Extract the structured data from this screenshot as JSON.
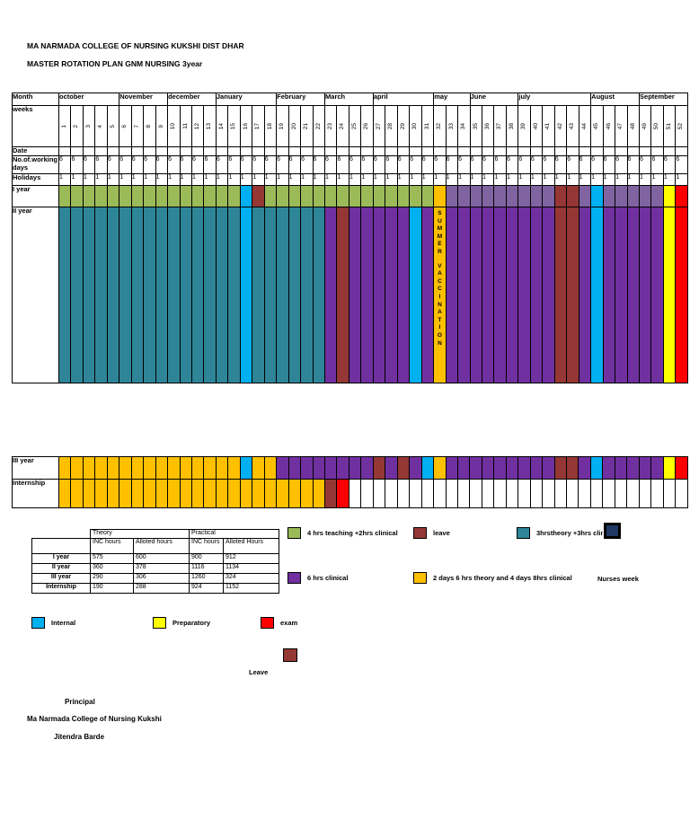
{
  "header": {
    "line1": "MA NARMADA COLLEGE OF NURSING KUKSHI DIST DHAR",
    "line2": "MASTER ROTATION PLAN GNM NURSING 3year"
  },
  "colors": {
    "green": "#9bbb59",
    "teal": "#2e8597",
    "purple": "#7030a0",
    "lavender": "#8064a2",
    "darkred": "#953734",
    "blue": "#00b0f0",
    "orange": "#ffc000",
    "yellow": "#ffff00",
    "red": "#ff0000",
    "white": "#ffffff",
    "navy": "#1f3864"
  },
  "rotation_table": {
    "row_labels": {
      "month": "Month",
      "weeks": "weeks",
      "date": "Date",
      "working_days": "No.of.working days",
      "holidays": "Holidays",
      "year1": "I year",
      "year2": "II year",
      "year3": "III year",
      "internship": "Internship"
    },
    "months": [
      {
        "label": "october",
        "weeks": 5
      },
      {
        "label": "November",
        "weeks": 4
      },
      {
        "label": "december",
        "weeks": 4
      },
      {
        "label": "January",
        "weeks": 5
      },
      {
        "label": "February",
        "weeks": 4
      },
      {
        "label": "March",
        "weeks": 4
      },
      {
        "label": "april",
        "weeks": 5
      },
      {
        "label": "may",
        "weeks": 3
      },
      {
        "label": "June",
        "weeks": 4
      },
      {
        "label": "july",
        "weeks": 6
      },
      {
        "label": "August",
        "weeks": 4
      },
      {
        "label": "September",
        "weeks": 4
      }
    ],
    "weeks_count": 52,
    "working_days_value": "6",
    "holidays_value": "1",
    "summer_week": 32,
    "summer_text": "SUMMER VACCINATION",
    "year1_colors": [
      "green",
      "green",
      "green",
      "green",
      "green",
      "green",
      "green",
      "green",
      "green",
      "green",
      "green",
      "green",
      "green",
      "green",
      "green",
      "blue",
      "darkred",
      "green",
      "green",
      "green",
      "green",
      "green",
      "green",
      "green",
      "green",
      "green",
      "green",
      "green",
      "green",
      "green",
      "green",
      "orange",
      "lavender",
      "lavender",
      "lavender",
      "lavender",
      "lavender",
      "lavender",
      "lavender",
      "lavender",
      "lavender",
      "darkred",
      "darkred",
      "lavender",
      "blue",
      "lavender",
      "lavender",
      "lavender",
      "lavender",
      "lavender",
      "yellow",
      "red"
    ],
    "year2_colors": [
      "teal",
      "teal",
      "teal",
      "teal",
      "teal",
      "teal",
      "teal",
      "teal",
      "teal",
      "teal",
      "teal",
      "teal",
      "teal",
      "teal",
      "teal",
      "blue",
      "teal",
      "teal",
      "teal",
      "teal",
      "teal",
      "teal",
      "purple",
      "darkred",
      "purple",
      "purple",
      "purple",
      "purple",
      "purple",
      "blue",
      "purple",
      "orange",
      "purple",
      "purple",
      "purple",
      "purple",
      "purple",
      "purple",
      "purple",
      "purple",
      "purple",
      "darkred",
      "darkred",
      "purple",
      "blue",
      "purple",
      "purple",
      "purple",
      "purple",
      "purple",
      "yellow",
      "red"
    ],
    "year3_colors": [
      "orange",
      "orange",
      "orange",
      "orange",
      "orange",
      "orange",
      "orange",
      "orange",
      "orange",
      "orange",
      "orange",
      "orange",
      "orange",
      "orange",
      "orange",
      "blue",
      "orange",
      "orange",
      "purple",
      "purple",
      "purple",
      "purple",
      "purple",
      "purple",
      "purple",
      "purple",
      "darkred",
      "purple",
      "darkred",
      "purple",
      "blue",
      "orange",
      "purple",
      "purple",
      "purple",
      "purple",
      "purple",
      "purple",
      "purple",
      "purple",
      "purple",
      "darkred",
      "darkred",
      "purple",
      "blue",
      "purple",
      "purple",
      "purple",
      "purple",
      "purple",
      "yellow",
      "red"
    ],
    "internship_colors": [
      "orange",
      "orange",
      "orange",
      "orange",
      "orange",
      "orange",
      "orange",
      "orange",
      "orange",
      "orange",
      "orange",
      "orange",
      "orange",
      "orange",
      "orange",
      "orange",
      "orange",
      "orange",
      "orange",
      "orange",
      "orange",
      "orange",
      "darkred",
      "red",
      "white",
      "white",
      "white",
      "white",
      "white",
      "white",
      "white",
      "white",
      "white",
      "white",
      "white",
      "white",
      "white",
      "white",
      "white",
      "white",
      "white",
      "white",
      "white",
      "white",
      "white",
      "white",
      "white",
      "white",
      "white",
      "white",
      "white",
      "white"
    ]
  },
  "hours_table": {
    "theory_header": "Theory",
    "practical_header": "Practical",
    "col_headers": [
      "INC hours",
      "Alloted hours",
      "INC hours",
      "Alloted Hours"
    ],
    "rows": [
      {
        "label": "I year",
        "theory_inc": "575",
        "theory_alloted": "600",
        "practical_inc": "900",
        "practical_alloted": "912"
      },
      {
        "label": "II year",
        "theory_inc": "360",
        "theory_alloted": "378",
        "practical_inc": "1116",
        "practical_alloted": "1134"
      },
      {
        "label": "III year",
        "theory_inc": "290",
        "theory_alloted": "306",
        "practical_inc": "1260",
        "practical_alloted": "324"
      },
      {
        "label": "Internship",
        "theory_inc": "190",
        "theory_alloted": "288",
        "practical_inc": "924",
        "practical_alloted": "1152"
      }
    ]
  },
  "legend": {
    "items": [
      {
        "swatch": "green",
        "label": "4 hrs teaching +2hrs clinical"
      },
      {
        "swatch": "darkred",
        "label": "leave"
      },
      {
        "swatch": "teal",
        "label": "3hrstheory +3hrs clinical"
      },
      {
        "swatch": "navy",
        "label": ""
      },
      {
        "swatch": "purple",
        "label": "6 hrs clinical"
      },
      {
        "swatch": "orange",
        "label": "2 days 6 hrs theory and 4 days 8hrs clinical"
      },
      {
        "label": "Nurses week"
      },
      {
        "swatch": "blue",
        "label": "Internal"
      },
      {
        "swatch": "yellow",
        "label": "Preparatory"
      },
      {
        "swatch": "red",
        "label": "exam"
      },
      {
        "swatch": "darkred",
        "label": "Leave"
      }
    ]
  },
  "footer": {
    "principal": "Principal",
    "college": "Ma Narmada College of Nursing Kukshi",
    "name": "Jitendra Barde"
  }
}
